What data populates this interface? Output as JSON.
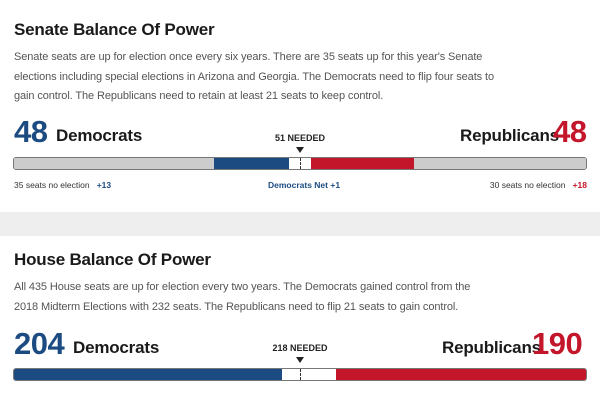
{
  "senate": {
    "title": "Senate Balance Of Power",
    "description": "Senate seats are up for election once every six years. There are 35 seats up for this year's Senate elections including special elections in Arizona and Georgia. The Democrats need to flip four seats to gain control. The Republicans need to retain at least 21 seats to keep control.",
    "dem_count": "48",
    "dem_label": "Democrats",
    "rep_count": "48",
    "rep_label": "Republicans",
    "needed": "51 NEEDED",
    "dem_no_election": "35 seats no election",
    "dem_plus": "+13",
    "net": "Democrats Net +1",
    "rep_no_election": "30 seats no election",
    "rep_plus": "+18",
    "bar_fractions": {
      "dem_no_election": 0.35,
      "dem_won": 0.13,
      "undecided": 0.04,
      "rep_won": 0.18,
      "rep_no_election": 0.3
    }
  },
  "house": {
    "title": "House Balance Of Power",
    "description": "All 435 House seats are up for election every two years. The Democrats gained control from the 2018 Midterm Elections with 232 seats. The Republicans need to flip 21 seats to gain control.",
    "dem_count": "204",
    "dem_label": "Democrats",
    "rep_count": "190",
    "rep_label": "Republicans",
    "needed": "218 NEEDED",
    "bar_fractions": {
      "dem": 0.469,
      "undecided": 0.094,
      "rep": 0.437
    }
  },
  "colors": {
    "dem": "#1c4b82",
    "rep": "#c4162a",
    "no_election": "#cccccc",
    "undecided": "#ffffff"
  }
}
